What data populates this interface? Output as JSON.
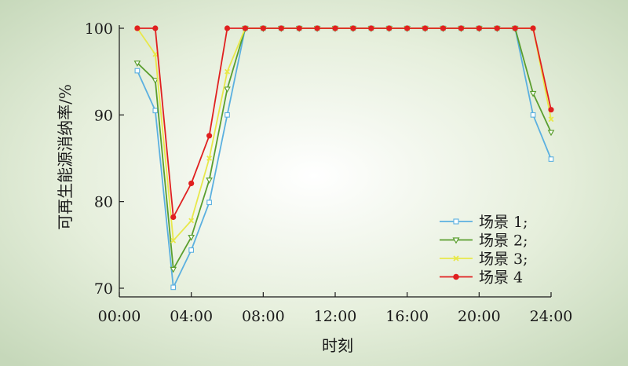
{
  "chart_data": {
    "type": "line",
    "xlabel": "时刻",
    "ylabel": "可再生能源消纳率/%",
    "x_tick_labels": [
      "00:00",
      "04:00",
      "08:00",
      "12:00",
      "16:00",
      "20:00",
      "24:00"
    ],
    "x_ticks": [
      0,
      4,
      8,
      12,
      16,
      20,
      24
    ],
    "xlim": [
      0,
      24
    ],
    "y_ticks": [
      70,
      80,
      90,
      100
    ],
    "y_tick_labels": [
      "70",
      "80",
      "90",
      "100"
    ],
    "ylim": [
      69,
      100
    ],
    "grid": false,
    "legend_position": "bottom-right",
    "x": [
      1,
      2,
      3,
      4,
      5,
      6,
      7,
      8,
      9,
      10,
      11,
      12,
      13,
      14,
      15,
      16,
      17,
      18,
      19,
      20,
      21,
      22,
      23,
      24
    ],
    "series": [
      {
        "name": "场景 1;",
        "color": "#5bb0e0",
        "marker": "square-open",
        "values": [
          95.1,
          90.5,
          70.1,
          74.4,
          79.9,
          90.0,
          100,
          100,
          100,
          100,
          100,
          100,
          100,
          100,
          100,
          100,
          100,
          100,
          100,
          100,
          100,
          100,
          90.0,
          84.9
        ]
      },
      {
        "name": "场景 2;",
        "color": "#5a9e2e",
        "marker": "triangle-down-open",
        "values": [
          96.0,
          94.0,
          72.2,
          75.9,
          82.5,
          93.0,
          100,
          100,
          100,
          100,
          100,
          100,
          100,
          100,
          100,
          100,
          100,
          100,
          100,
          100,
          100,
          100,
          92.5,
          88.0
        ]
      },
      {
        "name": "场景 3;",
        "color": "#e8e84a",
        "marker": "x",
        "values": [
          100,
          97.0,
          75.5,
          77.8,
          85.0,
          95.0,
          100,
          100,
          100,
          100,
          100,
          100,
          100,
          100,
          100,
          100,
          100,
          100,
          100,
          100,
          100,
          100,
          100,
          89.5
        ]
      },
      {
        "name": "场景 4",
        "color": "#e02020",
        "marker": "circle-filled",
        "values": [
          100,
          100,
          78.2,
          82.1,
          87.6,
          100,
          100,
          100,
          100,
          100,
          100,
          100,
          100,
          100,
          100,
          100,
          100,
          100,
          100,
          100,
          100,
          100,
          100,
          90.6
        ]
      }
    ]
  }
}
